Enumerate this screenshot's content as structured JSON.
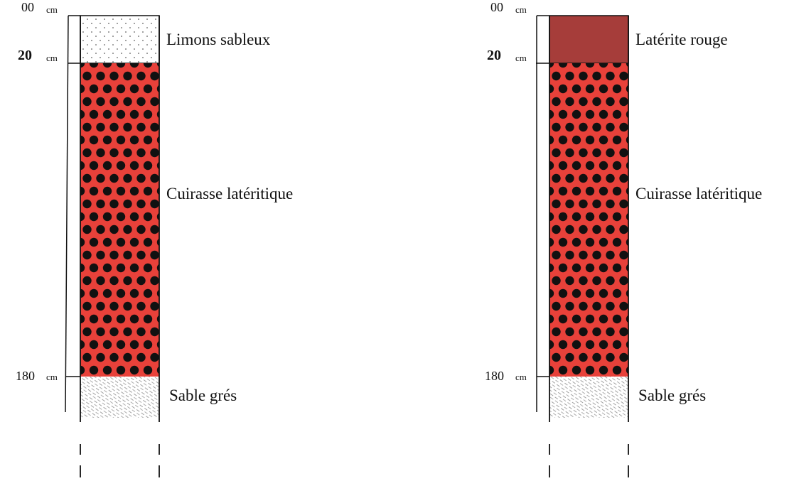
{
  "profiles": [
    {
      "depths": [
        {
          "value": "00",
          "unit": "cm"
        },
        {
          "value": "20",
          "unit": "cm"
        },
        {
          "value": "180",
          "unit": "cm"
        }
      ],
      "layers": [
        {
          "label": "Limons sableux"
        },
        {
          "label": "Cuirasse latéritique"
        },
        {
          "label": "Sable grés"
        }
      ]
    },
    {
      "depths": [
        {
          "value": "00",
          "unit": "cm"
        },
        {
          "value": "20",
          "unit": "cm"
        },
        {
          "value": "180",
          "unit": "cm"
        }
      ],
      "layers": [
        {
          "label": "Latérite rouge"
        },
        {
          "label": "Cuirasse latéritique"
        },
        {
          "label": "Sable grés"
        }
      ]
    }
  ]
}
